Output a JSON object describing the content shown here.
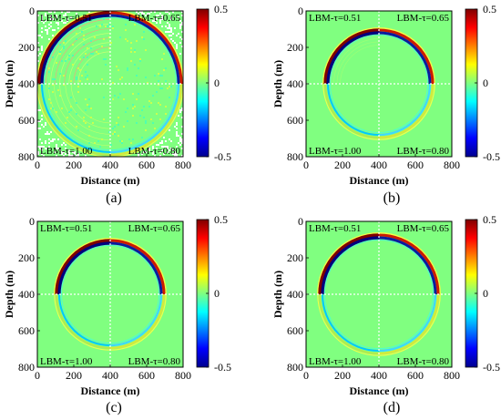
{
  "chart_data": [
    {
      "type": "heatmap",
      "panel_label": "(a)",
      "xlabel": "Distance (m)",
      "ylabel": "Depth (m)",
      "x_ticks": [
        "0",
        "200",
        "400",
        "600",
        "800"
      ],
      "y_ticks": [
        "0",
        "200",
        "400",
        "600",
        "800"
      ],
      "xlim": [
        0,
        800
      ],
      "ylim": [
        0,
        800
      ],
      "y_reversed": true,
      "grid": false,
      "colorbar": {
        "ticks": [
          "0.5",
          "0",
          "-0.5"
        ],
        "range": [
          -0.5,
          0.5
        ],
        "colormap": "jet"
      },
      "quadrant_labels": {
        "top_left": "LBM-τ=0.51",
        "top_right": "LBM-τ=0.65",
        "bottom_left": "LBM-τ=1.00",
        "bottom_right": "LBM-τ=0.80"
      },
      "wavefront_radius_m": 390,
      "source_m": [
        400,
        400
      ],
      "noise": "strong"
    },
    {
      "type": "heatmap",
      "panel_label": "(b)",
      "xlabel": "Distance (m)",
      "ylabel": "Depth (m)",
      "x_ticks": [
        "0",
        "200",
        "400",
        "600",
        "800"
      ],
      "y_ticks": [
        "0",
        "200",
        "400",
        "600",
        "800"
      ],
      "xlim": [
        0,
        800
      ],
      "ylim": [
        0,
        800
      ],
      "y_reversed": true,
      "grid": false,
      "colorbar": {
        "ticks": [
          "0.5",
          "0",
          "-0.5"
        ],
        "range": [
          -0.5,
          0.5
        ],
        "colormap": "jet"
      },
      "quadrant_labels": {
        "top_left": "LBM-τ=0.51",
        "top_right": "LBM-τ=0.65",
        "bottom_left": "LBM-τ=1.00",
        "bottom_right": "LBM-τ=0.80"
      },
      "wavefront_radius_m": 295,
      "source_m": [
        400,
        400
      ],
      "noise": "weak"
    },
    {
      "type": "heatmap",
      "panel_label": "(c)",
      "xlabel": "Distance (m)",
      "ylabel": "Depth (m)",
      "x_ticks": [
        "0",
        "200",
        "400",
        "600",
        "800"
      ],
      "y_ticks": [
        "0",
        "200",
        "400",
        "600",
        "800"
      ],
      "xlim": [
        0,
        800
      ],
      "ylim": [
        0,
        800
      ],
      "y_reversed": true,
      "grid": false,
      "colorbar": {
        "ticks": [
          "0.5",
          "0",
          "-0.5"
        ],
        "range": [
          -0.5,
          0.5
        ],
        "colormap": "jet"
      },
      "quadrant_labels": {
        "top_left": "LBM-τ=0.51",
        "top_right": "LBM-τ=0.65",
        "bottom_left": "LBM-τ=1.00",
        "bottom_right": "LBM-τ=0.80"
      },
      "wavefront_radius_m": 295,
      "source_m": [
        400,
        400
      ],
      "noise": "none"
    },
    {
      "type": "heatmap",
      "panel_label": "(d)",
      "xlabel": "Distance (m)",
      "ylabel": "Depth (m)",
      "x_ticks": [
        "0",
        "200",
        "400",
        "600",
        "800"
      ],
      "y_ticks": [
        "0",
        "200",
        "400",
        "600",
        "800"
      ],
      "xlim": [
        0,
        800
      ],
      "ylim": [
        0,
        800
      ],
      "y_reversed": true,
      "grid": false,
      "colorbar": {
        "ticks": [
          "0.5",
          "0",
          "-0.5"
        ],
        "range": [
          -0.5,
          0.5
        ],
        "colormap": "jet"
      },
      "quadrant_labels": {
        "top_left": "LBM-τ=0.51",
        "top_right": "LBM-τ=0.65",
        "bottom_left": "LBM-τ=1.00",
        "bottom_right": "LBM-τ=0.80"
      },
      "wavefront_radius_m": 325,
      "source_m": [
        400,
        400
      ],
      "noise": "none"
    }
  ]
}
